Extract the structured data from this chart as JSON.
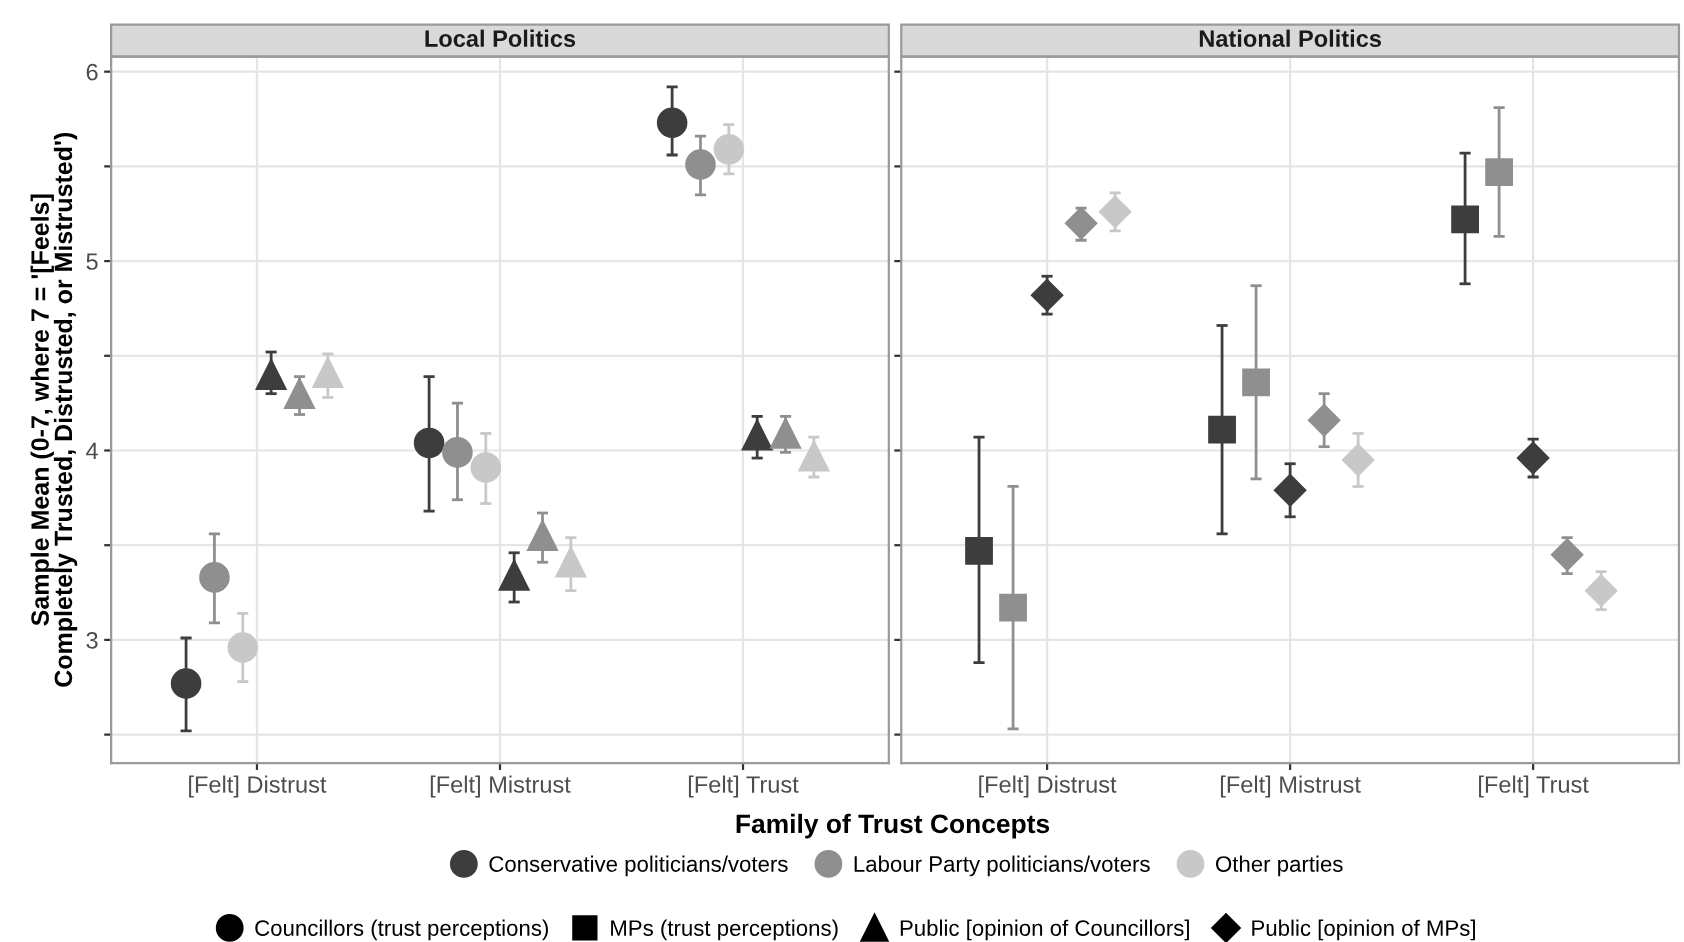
{
  "chart_data": [
    {
      "type": "scatter",
      "title": "Local Politics",
      "xlabel": "Family of Trust Concepts",
      "ylabel": "Sample Mean (0-7, where 7 = '[Feels]\nCompletely Trusted, Distrusted, or Mistrusted')",
      "categories": [
        "[Felt] Distrust",
        "[Felt] Mistrust",
        "[Felt] Trust"
      ],
      "ylim": [
        2.35,
        6.08
      ],
      "yticks": [
        {
          "value": 2.5,
          "label": null
        },
        3,
        {
          "value": 3.5,
          "label": null
        },
        4,
        {
          "value": 4.5,
          "label": null
        },
        5,
        {
          "value": 5.5,
          "label": null
        },
        6
      ],
      "grid": true,
      "legend": "bottom",
      "annotations": [
        "Councillors (trust perceptions)",
        "Public [opinion of Councillors]"
      ],
      "series": [
        {
          "name": "Conservative politicians/voters",
          "color": "#3d3d3d",
          "marker": "circle",
          "values": [
            2.77,
            4.04,
            5.73
          ],
          "errors": [
            [
              2.52,
              3.01
            ],
            [
              3.68,
              4.39
            ],
            [
              5.56,
              5.92
            ]
          ]
        },
        {
          "name": "Labour Party politicians/voters",
          "color": "#8f8f8f",
          "marker": "circle",
          "values": [
            3.33,
            3.99,
            5.51
          ],
          "errors": [
            [
              3.09,
              3.56
            ],
            [
              3.74,
              4.25
            ],
            [
              5.35,
              5.66
            ]
          ]
        },
        {
          "name": "Other parties",
          "color": "#c8c8c8",
          "marker": "circle",
          "values": [
            2.96,
            3.91,
            5.59
          ],
          "errors": [
            [
              2.78,
              3.14
            ],
            [
              3.72,
              4.09
            ],
            [
              5.46,
              5.72
            ]
          ]
        },
        {
          "color": "#3d3d3d",
          "marker": "triangle",
          "values": [
            4.4,
            3.34,
            4.08
          ],
          "errors": [
            [
              4.3,
              4.52
            ],
            [
              3.2,
              3.46
            ],
            [
              3.96,
              4.18
            ]
          ]
        },
        {
          "color": "#8f8f8f",
          "marker": "triangle",
          "values": [
            4.3,
            3.55,
            4.09
          ],
          "errors": [
            [
              4.19,
              4.39
            ],
            [
              3.41,
              3.67
            ],
            [
              3.99,
              4.18
            ]
          ]
        },
        {
          "color": "#c8c8c8",
          "marker": "triangle",
          "values": [
            4.41,
            3.41,
            3.97
          ],
          "errors": [
            [
              4.28,
              4.51
            ],
            [
              3.26,
              3.54
            ],
            [
              3.86,
              4.07
            ]
          ]
        }
      ]
    },
    {
      "type": "scatter",
      "title": "National Politics",
      "categories": [
        "[Felt] Distrust",
        "[Felt] Mistrust",
        "[Felt] Trust"
      ],
      "ylim": [
        2.35,
        6.08
      ],
      "yticks": [
        {
          "value": 2.5,
          "label": null
        },
        3,
        {
          "value": 3.5,
          "label": null
        },
        4,
        {
          "value": 4.5,
          "label": null
        },
        5,
        {
          "value": 5.5,
          "label": null
        },
        6
      ],
      "tick_labels": "x",
      "grid": true,
      "legend": "bottom",
      "annotations": [
        "MPs (trust perceptions)",
        "Public [opinion of MPs]"
      ],
      "series": [
        {
          "color": "#3d3d3d",
          "marker": "square",
          "values": [
            3.47,
            4.11,
            5.22
          ],
          "errors": [
            [
              2.88,
              4.07
            ],
            [
              3.56,
              4.66
            ],
            [
              4.88,
              5.57
            ]
          ]
        },
        {
          "color": "#8f8f8f",
          "marker": "square",
          "values": [
            3.17,
            4.36,
            5.47
          ],
          "errors": [
            [
              2.53,
              3.81
            ],
            [
              3.85,
              4.87
            ],
            [
              5.13,
              5.81
            ]
          ]
        },
        {
          "color": "#3d3d3d",
          "marker": "diamond",
          "values": [
            4.82,
            3.79,
            3.96
          ],
          "errors": [
            [
              4.72,
              4.92
            ],
            [
              3.65,
              3.93
            ],
            [
              3.86,
              4.06
            ]
          ]
        },
        {
          "color": "#8f8f8f",
          "marker": "diamond",
          "values": [
            5.2,
            4.16,
            3.45
          ],
          "errors": [
            [
              5.11,
              5.28
            ],
            [
              4.02,
              4.3
            ],
            [
              3.35,
              3.54
            ]
          ]
        },
        {
          "color": "#c8c8c8",
          "marker": "diamond",
          "values": [
            5.26,
            3.95,
            3.26
          ],
          "errors": [
            [
              5.16,
              5.36
            ],
            [
              3.81,
              4.09
            ],
            [
              3.16,
              3.36
            ]
          ]
        }
      ]
    }
  ]
}
